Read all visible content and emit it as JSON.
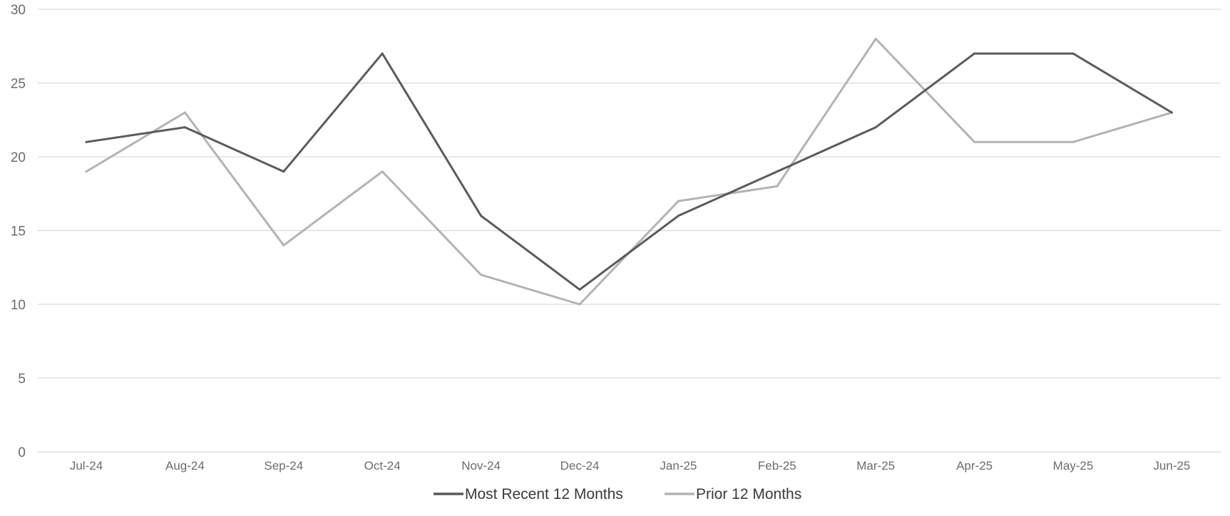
{
  "chart_data": {
    "type": "line",
    "categories": [
      "Jul-24",
      "Aug-24",
      "Sep-24",
      "Oct-24",
      "Nov-24",
      "Dec-24",
      "Jan-25",
      "Feb-25",
      "Mar-25",
      "Apr-25",
      "May-25",
      "Jun-25"
    ],
    "series": [
      {
        "name": "Most Recent 12 Months",
        "color": "#5b5b5b",
        "values": [
          21,
          22,
          19,
          27,
          16,
          11,
          16,
          19,
          22,
          27,
          27,
          23
        ]
      },
      {
        "name": "Prior 12 Months",
        "color": "#b3b3b3",
        "values": [
          19,
          23,
          14,
          19,
          12,
          10,
          17,
          18,
          28,
          21,
          21,
          23
        ]
      }
    ],
    "ylim": [
      0,
      30
    ],
    "yticks": [
      0,
      5,
      10,
      15,
      20,
      25,
      30
    ],
    "grid": true,
    "legend_position": "bottom-center",
    "title": "",
    "xlabel": "",
    "ylabel": ""
  }
}
